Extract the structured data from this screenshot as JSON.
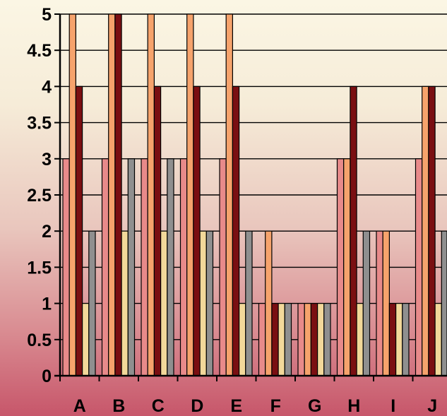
{
  "chart_data": {
    "type": "bar",
    "categories": [
      "A",
      "B",
      "C",
      "D",
      "E",
      "F",
      "G",
      "H",
      "I",
      "J"
    ],
    "series": [
      {
        "values": [
          3,
          3,
          3,
          3,
          3,
          1,
          1,
          3,
          2,
          3
        ]
      },
      {
        "values": [
          5,
          5,
          5,
          5,
          5,
          2,
          1,
          3,
          2,
          4
        ]
      },
      {
        "values": [
          4,
          5,
          4,
          4,
          4,
          1,
          1,
          4,
          1,
          4
        ]
      },
      {
        "values": [
          1,
          2,
          2,
          2,
          1,
          1,
          1,
          1,
          1,
          1
        ]
      },
      {
        "values": [
          2,
          3,
          3,
          2,
          2,
          1,
          1,
          2,
          1,
          2
        ]
      }
    ],
    "series_colors": [
      "#e88a8a",
      "#f6a36c",
      "#7a0f12",
      "#f2d89a",
      "#8f8f8f"
    ],
    "ylim": [
      0,
      5
    ],
    "yticks": [
      "0",
      "0.5",
      "1",
      "1.5",
      "2",
      "2.5",
      "3",
      "3.5",
      "4",
      "4.5",
      "5"
    ],
    "grid": true,
    "legend": false
  }
}
